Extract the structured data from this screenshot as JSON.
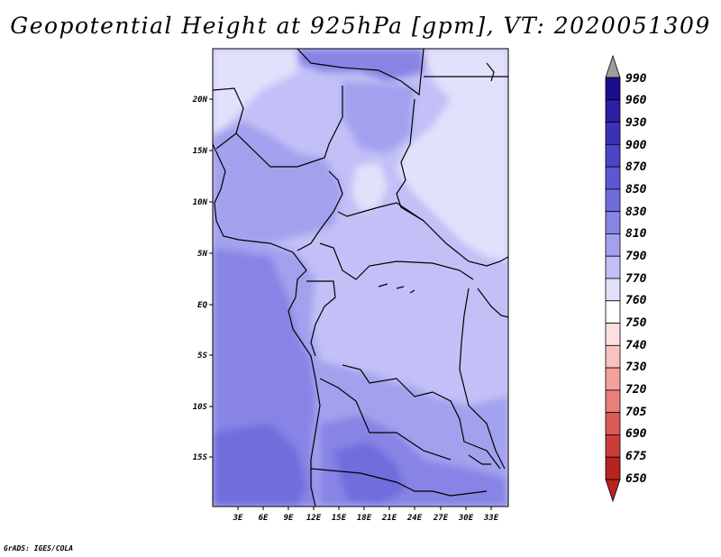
{
  "title": "Geopotential Height at 925hPa [gpm], VT: 2020051309",
  "credit": "GrADS: IGES/COLA",
  "map": {
    "lon_ticks": [
      "3E",
      "6E",
      "9E",
      "12E",
      "15E",
      "18E",
      "21E",
      "24E",
      "27E",
      "30E",
      "33E"
    ],
    "lat_ticks": [
      "20N",
      "15N",
      "10N",
      "5N",
      "EQ",
      "5S",
      "10S",
      "15S"
    ]
  },
  "colorbar": {
    "levels": [
      "990",
      "960",
      "930",
      "900",
      "870",
      "850",
      "830",
      "810",
      "790",
      "770",
      "760",
      "750",
      "740",
      "730",
      "720",
      "705",
      "690",
      "675",
      "650"
    ],
    "colors": [
      "#1a0e8c",
      "#2a1fa3",
      "#3b31b8",
      "#4b45c8",
      "#5c58d4",
      "#6f6ddd",
      "#8784e5",
      "#a3a1ee",
      "#c2c0f6",
      "#e2e1fb",
      "#ffffff",
      "#fde0de",
      "#f9c2be",
      "#f2a19c",
      "#e97f79",
      "#dd5b56",
      "#cc3c38",
      "#b8221f",
      "#9e1010"
    ]
  }
}
